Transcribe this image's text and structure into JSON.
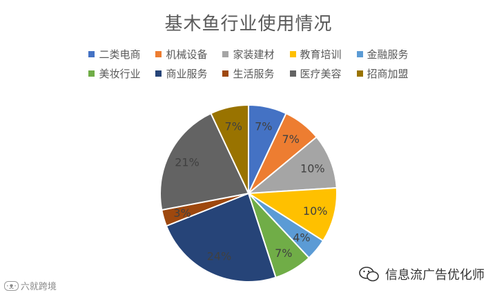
{
  "chart_data": {
    "type": "pie",
    "title": "基木鱼行业使用情况",
    "legend_position": "top",
    "categories": [
      "二类电商",
      "机械设备",
      "家装建材",
      "教育培训",
      "金融服务",
      "美妆行业",
      "商业服务",
      "生活服务",
      "医疗美容",
      "招商加盟"
    ],
    "values": [
      7,
      7,
      10,
      10,
      4,
      7,
      24,
      3,
      21,
      7
    ],
    "labels": [
      "7%",
      "7%",
      "10%",
      "10%",
      "4%",
      "7%",
      "24%",
      "3%",
      "21%",
      "7%"
    ],
    "colors": [
      "#4472C4",
      "#ED7D31",
      "#A5A5A5",
      "#FFC000",
      "#5B9BD5",
      "#70AD47",
      "#264478",
      "#9E480E",
      "#636363",
      "#997300"
    ]
  },
  "watermark_left": {
    "icon": "cat-icon",
    "text": "六就跨境"
  },
  "watermark_right": {
    "icon": "wechat-icon",
    "text": "信息流广告优化师"
  }
}
